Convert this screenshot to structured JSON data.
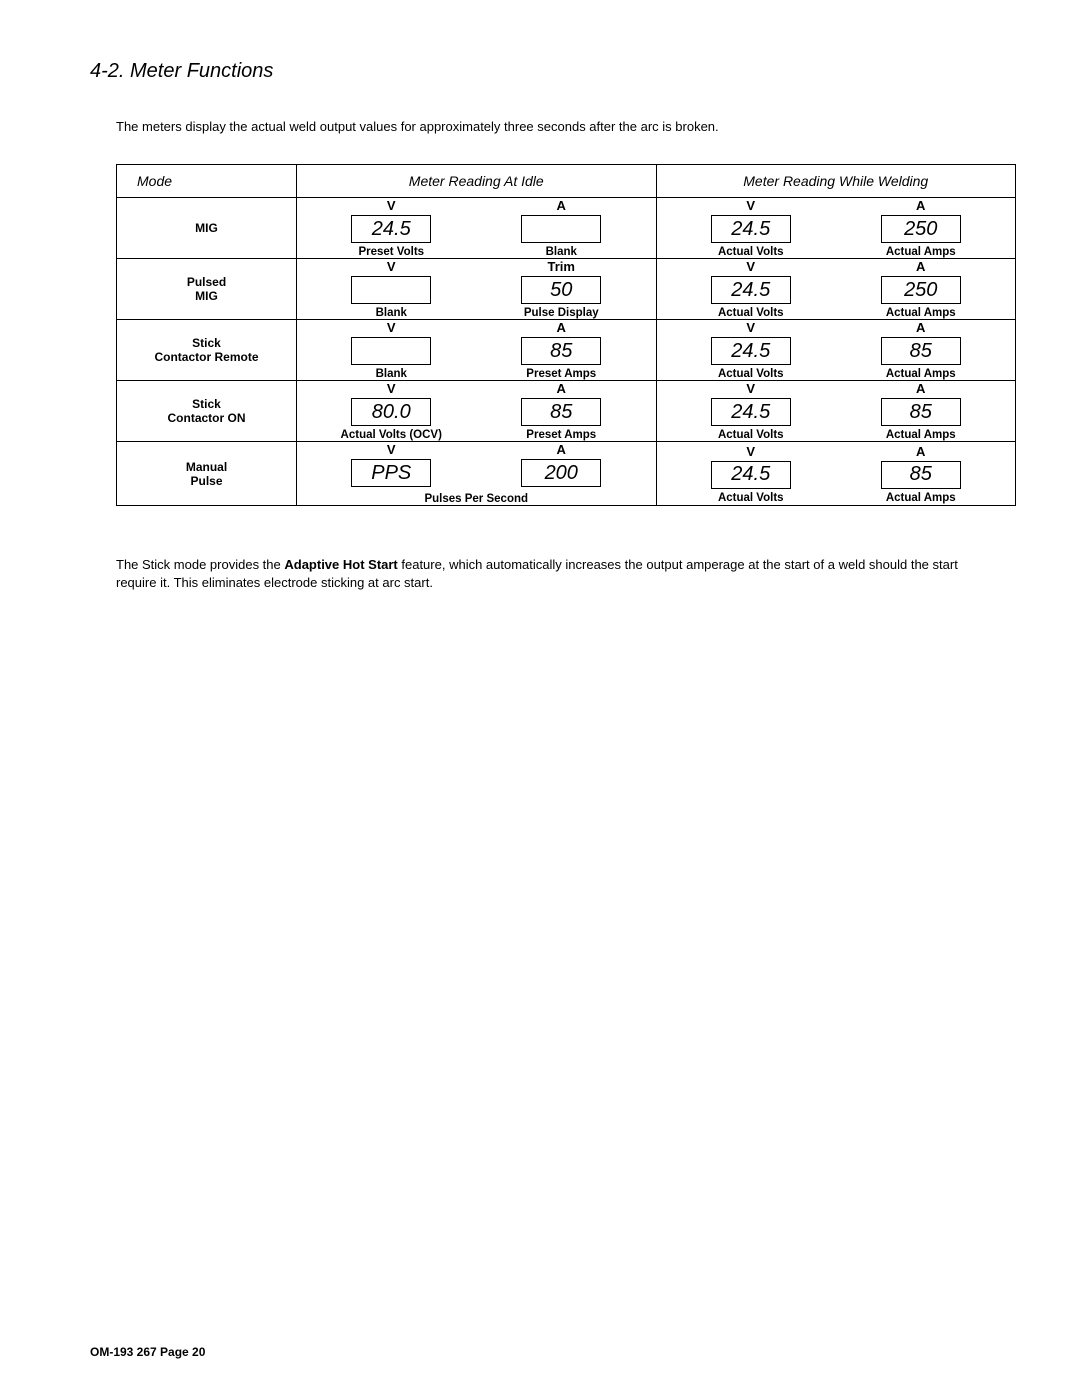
{
  "section_title": "4-2.   Meter Functions",
  "intro_text": "The meters display the actual weld output values for approximately three seconds after the arc is broken.",
  "table": {
    "headers": {
      "mode": "Mode",
      "idle": "Meter Reading At Idle",
      "welding": "Meter Reading While Welding"
    },
    "rows": [
      {
        "mode_lines": [
          "MIG"
        ],
        "idle": [
          {
            "unit": "V",
            "value": "24.5",
            "desc": "Preset Volts"
          },
          {
            "unit": "A",
            "value": "",
            "desc": "Blank"
          }
        ],
        "welding": [
          {
            "unit": "V",
            "value": "24.5",
            "desc": "Actual Volts"
          },
          {
            "unit": "A",
            "value": "250",
            "desc": "Actual Amps"
          }
        ]
      },
      {
        "mode_lines": [
          "Pulsed",
          "MIG"
        ],
        "idle": [
          {
            "unit": "V",
            "value": "",
            "desc": "Blank"
          },
          {
            "unit": "Trim",
            "value": "50",
            "desc": "Pulse Display"
          }
        ],
        "welding": [
          {
            "unit": "V",
            "value": "24.5",
            "desc": "Actual Volts"
          },
          {
            "unit": "A",
            "value": "250",
            "desc": "Actual Amps"
          }
        ]
      },
      {
        "mode_lines": [
          "Stick",
          "Contactor Remote"
        ],
        "idle": [
          {
            "unit": "V",
            "value": "",
            "desc": "Blank"
          },
          {
            "unit": "A",
            "value": "85",
            "desc": "Preset Amps"
          }
        ],
        "welding": [
          {
            "unit": "V",
            "value": "24.5",
            "desc": "Actual Volts"
          },
          {
            "unit": "A",
            "value": "85",
            "desc": "Actual Amps"
          }
        ]
      },
      {
        "mode_lines": [
          "Stick",
          "Contactor ON"
        ],
        "idle": [
          {
            "unit": "V",
            "value": "80.0",
            "desc": "Actual Volts (OCV)"
          },
          {
            "unit": "A",
            "value": "85",
            "desc": "Preset Amps"
          }
        ],
        "welding": [
          {
            "unit": "V",
            "value": "24.5",
            "desc": "Actual Volts"
          },
          {
            "unit": "A",
            "value": "85",
            "desc": "Actual Amps"
          }
        ]
      },
      {
        "mode_lines": [
          "Manual",
          "Pulse"
        ],
        "idle_merged_desc": "Pulses Per Second",
        "idle": [
          {
            "unit": "V",
            "value": "PPS",
            "desc": ""
          },
          {
            "unit": "A",
            "value": "200",
            "desc": ""
          }
        ],
        "welding": [
          {
            "unit": "V",
            "value": "24.5",
            "desc": "Actual Volts"
          },
          {
            "unit": "A",
            "value": "85",
            "desc": "Actual Amps"
          }
        ]
      }
    ]
  },
  "note": {
    "prefix": "The Stick mode provides the ",
    "bold": "Adaptive Hot Start",
    "suffix": "  feature, which automatically increases the output amperage at the start of a weld should the start require it. This eliminates electrode sticking at arc start."
  },
  "footer": "OM-193 267 Page 20"
}
